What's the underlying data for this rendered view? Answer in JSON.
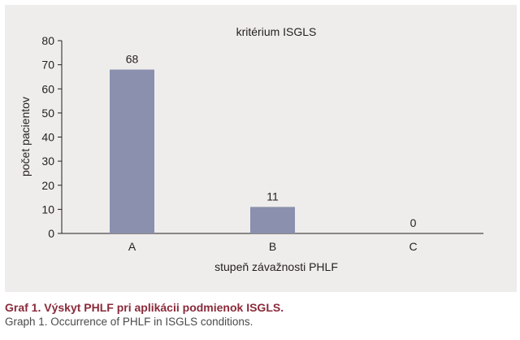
{
  "chart_data": {
    "type": "bar",
    "title": "kritérium ISGLS",
    "xlabel": "stupeň závažnosti PHLF",
    "ylabel": "počet pacientov",
    "categories": [
      "A",
      "B",
      "C"
    ],
    "values": [
      68,
      11,
      0
    ],
    "data_labels": [
      "68",
      "11",
      "0"
    ],
    "ylim": [
      0,
      80
    ],
    "yticks": [
      "0",
      "10",
      "20",
      "30",
      "40",
      "50",
      "60",
      "70",
      "80"
    ],
    "bar_color": "#8a90ad",
    "grid": false,
    "legend": "none"
  },
  "caption": {
    "main": "Graf 1. Výskyt PHLF pri aplikácii podmienok ISGLS.",
    "sub": "Graph 1. Occurrence of PHLF in ISGLS conditions."
  },
  "colors": {
    "panel_background": "#efedeb",
    "caption_main": "#8a2a3a",
    "caption_sub": "#4a4a4a"
  }
}
